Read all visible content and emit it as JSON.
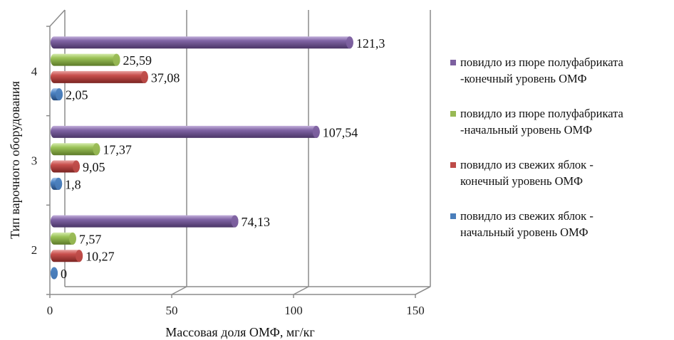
{
  "chart_data": {
    "type": "bar",
    "orientation": "horizontal",
    "categories": [
      "2",
      "3",
      "4"
    ],
    "series": [
      {
        "name": "повидло из свежих яблок - начальный уровень ОМФ",
        "color": "#4a7ebb",
        "values": [
          0,
          1.8,
          2.05
        ],
        "labels": [
          "0",
          "1,8",
          "2,05"
        ]
      },
      {
        "name": "повидло из свежих яблок - конечный уровень ОМФ",
        "color": "#be4b48",
        "values": [
          10.27,
          9.05,
          37.08
        ],
        "labels": [
          "10,27",
          "9,05",
          "37,08"
        ]
      },
      {
        "name": "повидло из пюре полуфабриката -начальный уровень ОМФ",
        "color": "#98b954",
        "values": [
          7.57,
          17.37,
          25.59
        ],
        "labels": [
          "7,57",
          "17,37",
          "25,59"
        ]
      },
      {
        "name": "повидло из пюре полуфабриката -конечный уровень ОМФ",
        "color": "#7d60a0",
        "values": [
          74.13,
          107.54,
          121.3
        ],
        "labels": [
          "74,13",
          "107,54",
          "121,3"
        ]
      }
    ],
    "xlabel": "Массовая доля ОМФ, мг/кг",
    "ylabel": "Тип  варочного оборудования",
    "xlim": [
      0,
      150
    ],
    "xticks": [
      "0",
      "50",
      "100",
      "150"
    ],
    "grid": true,
    "legend_position": "right",
    "style": "3d-cylinder"
  },
  "legend": [
    {
      "line1": "повидло из пюре полуфабриката",
      "line2": "-конечный уровень ОМФ",
      "color": "#7d60a0"
    },
    {
      "line1": "повидло из пюре полуфабриката",
      "line2": "-начальный уровень ОМФ",
      "color": "#98b954"
    },
    {
      "line1": "повидло из свежих яблок -",
      "line2": "конечный уровень ОМФ",
      "color": "#be4b48"
    },
    {
      "line1": "повидло из свежих яблок -",
      "line2": "начальный уровень ОМФ",
      "color": "#4a7ebb"
    }
  ]
}
